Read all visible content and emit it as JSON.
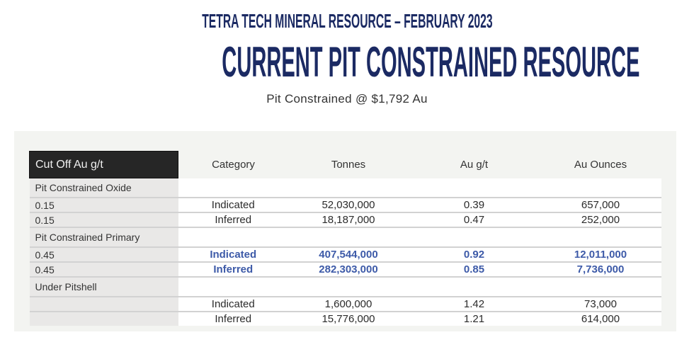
{
  "header": {
    "subtitle_top": "TETRA TECH MINERAL RESOURCE – FEBRUARY 2023",
    "title": "CURRENT PIT CONSTRAINED RESOURCE",
    "subtitle": "Pit Constrained @ $1,792 Au"
  },
  "table": {
    "columns": [
      "Cut Off Au g/t",
      "Category",
      "Tonnes",
      "Au g/t",
      "Au Ounces"
    ],
    "rows": [
      {
        "type": "section",
        "label": "Pit Constrained Oxide"
      },
      {
        "type": "data",
        "cutoff": "0.15",
        "category": "Indicated",
        "tonnes": "52,030,000",
        "grade": "0.39",
        "ounces": "657,000"
      },
      {
        "type": "data",
        "cutoff": "0.15",
        "category": "Inferred",
        "tonnes": "18,187,000",
        "grade": "0.47",
        "ounces": "252,000"
      },
      {
        "type": "section",
        "label": "Pit Constrained Primary"
      },
      {
        "type": "data",
        "highlight": true,
        "cutoff": "0.45",
        "category": "Indicated",
        "tonnes": "407,544,000",
        "grade": "0.92",
        "ounces": "12,011,000"
      },
      {
        "type": "data",
        "highlight": true,
        "cutoff": "0.45",
        "category": "Inferred",
        "tonnes": "282,303,000",
        "grade": "0.85",
        "ounces": "7,736,000"
      },
      {
        "type": "section",
        "label": "Under Pitshell"
      },
      {
        "type": "data",
        "cutoff": "",
        "category": "Indicated",
        "tonnes": "1,600,000",
        "grade": "1.42",
        "ounces": "73,000"
      },
      {
        "type": "data",
        "cutoff": "",
        "category": "Inferred",
        "tonnes": "15,776,000",
        "grade": "1.21",
        "ounces": "614,000"
      }
    ]
  },
  "colors": {
    "title": "#1b2a63",
    "highlight": "#3d5aa8"
  }
}
